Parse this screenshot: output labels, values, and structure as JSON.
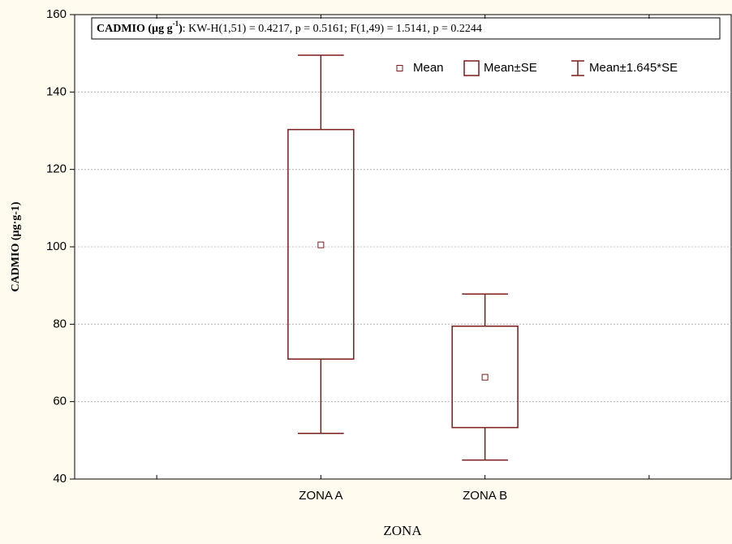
{
  "chart_data": {
    "type": "box",
    "title": {
      "label": "CADMIO (µg g",
      "superscript": "-1",
      "label_end": ")",
      "stats": ":  KW-H(1,51) = 0.4217, p = 0.5161;  F(1,49) = 1.5141, p = 0.2244"
    },
    "x_label": "ZONA",
    "y_label": "CADMIO (µg·g-1)",
    "categories": [
      null,
      "ZONA  A",
      "ZONA B",
      null
    ],
    "color": "#7b1a1a",
    "series": [
      {
        "name": "Mean",
        "values": [
          null,
          100.5,
          66.3,
          null
        ]
      },
      {
        "name": "Mean±SE",
        "low": [
          null,
          71,
          53.3,
          null
        ],
        "high": [
          null,
          130.3,
          79.5,
          null
        ]
      },
      {
        "name": "Mean±1.645*SE",
        "low": [
          null,
          51.8,
          44.9,
          null
        ],
        "high": [
          null,
          149.5,
          87.8,
          null
        ]
      }
    ],
    "ylim": [
      40,
      160
    ],
    "yticks": [
      40,
      60,
      80,
      100,
      120,
      140,
      160
    ],
    "grid": true
  }
}
